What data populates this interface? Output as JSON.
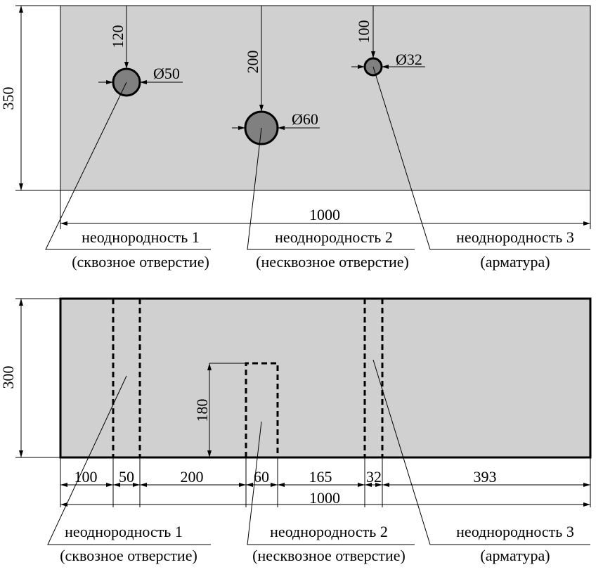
{
  "top_view": {
    "dimensions": {
      "hole_1_depth": "120",
      "hole_2_depth": "200",
      "hole_3_depth": "100",
      "hole_1_diameter": "Ø50",
      "hole_2_diameter": "Ø60",
      "hole_3_diameter": "Ø32",
      "height": "350",
      "width": "1000"
    },
    "labels": [
      {
        "name": "неоднородность 1",
        "note": "(сквозное отверстие)"
      },
      {
        "name": "неоднородность 2",
        "note": "(несквозное отверстие)"
      },
      {
        "name": "неоднородность 3",
        "note": "(арматура)"
      }
    ]
  },
  "section_view": {
    "dimensions": {
      "height": "300",
      "blind_depth": "180",
      "segments": [
        "100",
        "50",
        "200",
        "60",
        "165",
        "32",
        "393"
      ],
      "width": "1000"
    },
    "labels": [
      {
        "name": "неоднородность 1",
        "note": "(сквозное отверстие)"
      },
      {
        "name": "неоднородность 2",
        "note": "(несквозное отверстие)"
      },
      {
        "name": "неоднородность 3",
        "note": "(арматура)"
      }
    ]
  }
}
